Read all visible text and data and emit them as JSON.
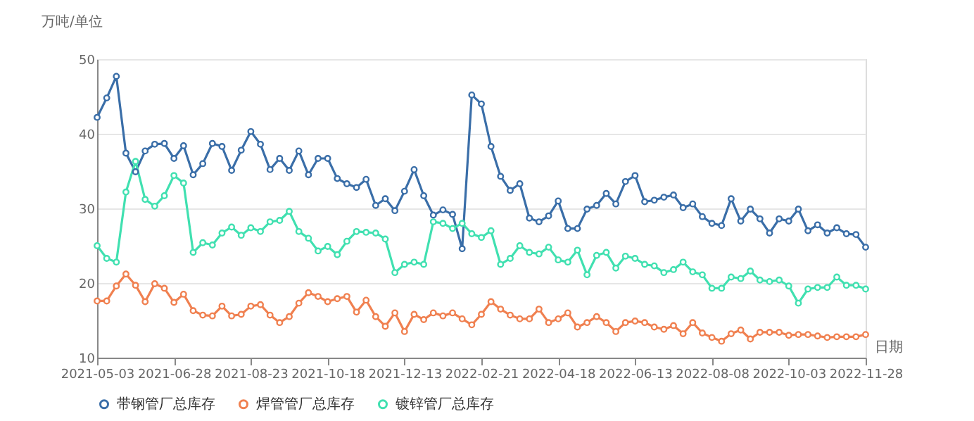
{
  "chart_data": {
    "type": "line",
    "ylabel": "万吨/单位",
    "xlabel": "日期",
    "categories": [
      "2021-05-03",
      null,
      null,
      null,
      null,
      null,
      null,
      null,
      "2021-06-28",
      null,
      null,
      null,
      null,
      null,
      null,
      null,
      "2021-08-23",
      null,
      null,
      null,
      null,
      null,
      null,
      null,
      "2021-10-18",
      null,
      null,
      null,
      null,
      null,
      null,
      null,
      "2021-12-13",
      null,
      null,
      null,
      null,
      null,
      null,
      null,
      "2022-02-21",
      null,
      null,
      null,
      null,
      null,
      null,
      null,
      "2022-04-18",
      null,
      null,
      null,
      null,
      null,
      null,
      null,
      "2022-06-13",
      null,
      null,
      null,
      null,
      null,
      null,
      null,
      "2022-08-08",
      null,
      null,
      null,
      null,
      null,
      null,
      null,
      "2022-10-03",
      null,
      null,
      null,
      null,
      null,
      null,
      null,
      "2022-11-28"
    ],
    "series": [
      {
        "name": "带钢管厂总库存",
        "color": "#3a6ea8",
        "values": [
          42.2,
          44.8,
          47.7,
          37.4,
          34.9,
          37.7,
          38.6,
          38.7,
          36.7,
          38.4,
          34.5,
          36.0,
          38.7,
          38.3,
          35.1,
          37.8,
          40.3,
          38.6,
          35.2,
          36.7,
          35.1,
          37.7,
          34.5,
          36.7,
          36.7,
          34.0,
          33.3,
          32.8,
          33.9,
          30.4,
          31.3,
          29.7,
          32.3,
          35.2,
          31.7,
          29.1,
          29.8,
          29.2,
          24.6,
          45.2,
          44.0,
          38.3,
          34.3,
          32.4,
          33.3,
          28.7,
          28.2,
          29.0,
          31.0,
          27.3,
          27.3,
          29.9,
          30.4,
          32.0,
          30.6,
          33.6,
          34.4,
          30.9,
          31.1,
          31.5,
          31.8,
          30.1,
          30.6,
          28.9,
          28.0,
          27.7,
          31.3,
          28.3,
          29.9,
          28.6,
          26.7,
          28.6,
          28.3,
          29.9,
          27.0,
          27.8,
          26.7,
          27.4,
          26.6,
          26.5,
          24.8
        ]
      },
      {
        "name": "焊管管厂总库存",
        "color": "#f08050",
        "values": [
          17.6,
          17.6,
          19.6,
          21.2,
          19.7,
          17.5,
          19.9,
          19.3,
          17.4,
          18.5,
          16.3,
          15.7,
          15.6,
          16.9,
          15.6,
          15.8,
          16.9,
          17.1,
          15.7,
          14.7,
          15.5,
          17.3,
          18.7,
          18.2,
          17.5,
          17.9,
          18.2,
          16.1,
          17.7,
          15.5,
          14.2,
          16.0,
          13.5,
          15.8,
          15.1,
          16.0,
          15.6,
          16.0,
          15.2,
          14.4,
          15.8,
          17.5,
          16.5,
          15.7,
          15.2,
          15.2,
          16.5,
          14.7,
          15.2,
          16.0,
          14.1,
          14.7,
          15.5,
          14.7,
          13.5,
          14.7,
          14.9,
          14.7,
          14.1,
          13.8,
          14.3,
          13.2,
          14.7,
          13.3,
          12.7,
          12.2,
          13.2,
          13.7,
          12.5,
          13.4,
          13.4,
          13.4,
          13.0,
          13.1,
          13.1,
          12.9,
          12.7,
          12.8,
          12.8,
          12.8,
          13.1
        ]
      },
      {
        "name": "镀锌管厂总库存",
        "color": "#40e0b0",
        "values": [
          25.0,
          23.3,
          22.8,
          32.2,
          36.3,
          31.2,
          30.3,
          31.7,
          34.4,
          33.4,
          24.1,
          25.4,
          25.1,
          26.7,
          27.5,
          26.4,
          27.4,
          26.9,
          28.2,
          28.4,
          29.6,
          26.9,
          26.0,
          24.3,
          24.9,
          23.8,
          25.6,
          26.9,
          26.8,
          26.7,
          25.9,
          21.4,
          22.5,
          22.8,
          22.5,
          28.2,
          28.0,
          27.3,
          28.0,
          26.6,
          26.1,
          27.0,
          22.5,
          23.3,
          25.0,
          24.1,
          23.9,
          24.8,
          23.1,
          22.8,
          24.4,
          21.1,
          23.7,
          24.1,
          22.0,
          23.6,
          23.3,
          22.5,
          22.3,
          21.4,
          21.8,
          22.8,
          21.5,
          21.1,
          19.3,
          19.3,
          20.8,
          20.6,
          21.6,
          20.4,
          20.2,
          20.4,
          19.6,
          17.3,
          19.2,
          19.4,
          19.4,
          20.8,
          19.7,
          19.7,
          19.2
        ]
      }
    ],
    "ylim": [
      10,
      50
    ],
    "yticks": [
      10,
      20,
      30,
      40,
      50
    ],
    "grid": "y",
    "legend": "bottom",
    "marker": "circle",
    "line_style": "solid"
  }
}
